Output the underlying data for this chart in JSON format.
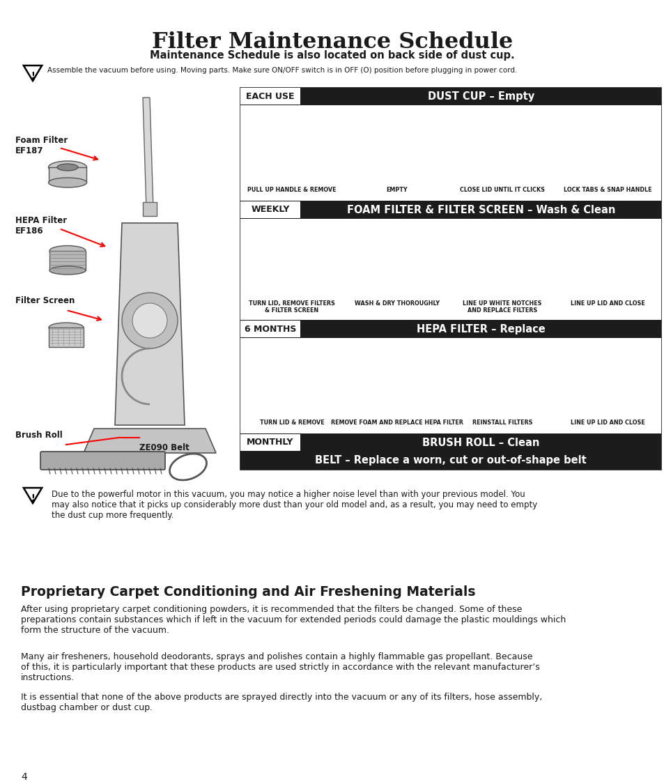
{
  "title": "Filter Maintenance Schedule",
  "subtitle": "Maintenance Schedule is also located on back side of dust cup.",
  "warning_text1": "Assemble the vacuum before using. Moving parts. Make sure ON/OFF switch is in OFF (O) position before plugging in power cord.",
  "row1_freq": "EACH USE",
  "row1_task": "DUST CUP – Empty",
  "row1_captions": [
    "PULL UP HANDLE & REMOVE",
    "EMPTY",
    "CLOSE LID UNTIL IT CLICKS",
    "LOCK TABS & SNAP HANDLE"
  ],
  "row2_freq": "WEEKLY",
  "row2_task": "FOAM FILTER & FILTER SCREEN – Wash & Clean",
  "row2_captions": [
    "TURN LID, REMOVE FILTERS\n& FILTER SCREEN",
    "WASH & DRY THOROUGHLY",
    "LINE UP WHITE NOTCHES\nAND REPLACE FILTERS",
    "LINE UP LID AND CLOSE"
  ],
  "row3_freq": "6 MONTHS",
  "row3_task": "HEPA FILTER – Replace",
  "row3_captions": [
    "TURN LID & REMOVE",
    "REMOVE FOAM AND REPLACE HEPA FILTER",
    "REINSTALL FILTERS",
    "LINE UP LID AND CLOSE"
  ],
  "row4_freq": "MONTHLY",
  "row4_task": "BRUSH ROLL – Clean",
  "belt_text": "BELT – Replace a worn, cut or out-of-shape belt",
  "label_foam": "Foam Filter\nEF187",
  "label_hepa": "HEPA Filter\nEF186",
  "label_screen": "Filter Screen",
  "label_brush": "Brush Roll",
  "label_belt": "ZE090 Belt",
  "warning_text2": "Due to the powerful motor in this vacuum, you may notice a higher noise level than with your previous model. You\nmay also notice that it picks up considerably more dust than your old model and, as a result, you may need to empty\nthe dust cup more frequently.",
  "section_title": "Proprietary Carpet Conditioning and Air Freshening Materials",
  "para1": "After using proprietary carpet conditioning powders, it is recommended that the filters be changed. Some of these\npreparations contain substances which if left in the vacuum for extended periods could damage the plastic mouldings which\nform the structure of the vacuum.",
  "para2": "Many air fresheners, household deodorants, sprays and polishes contain a highly flammable gas propellant. Because\nof this, it is particularly important that these products are used strictly in accordance with the relevant manufacturer’s\ninstructions.",
  "para3": "It is essential that none of the above products are sprayed directly into the vacuum or any of its filters, hose assembly,\ndustbag chamber or dust cup.",
  "page_num": "4",
  "bg_color": "#ffffff",
  "hdr_color": "#1c1c1c",
  "hdr_fg": "#ffffff",
  "body_color": "#1a1a1a"
}
